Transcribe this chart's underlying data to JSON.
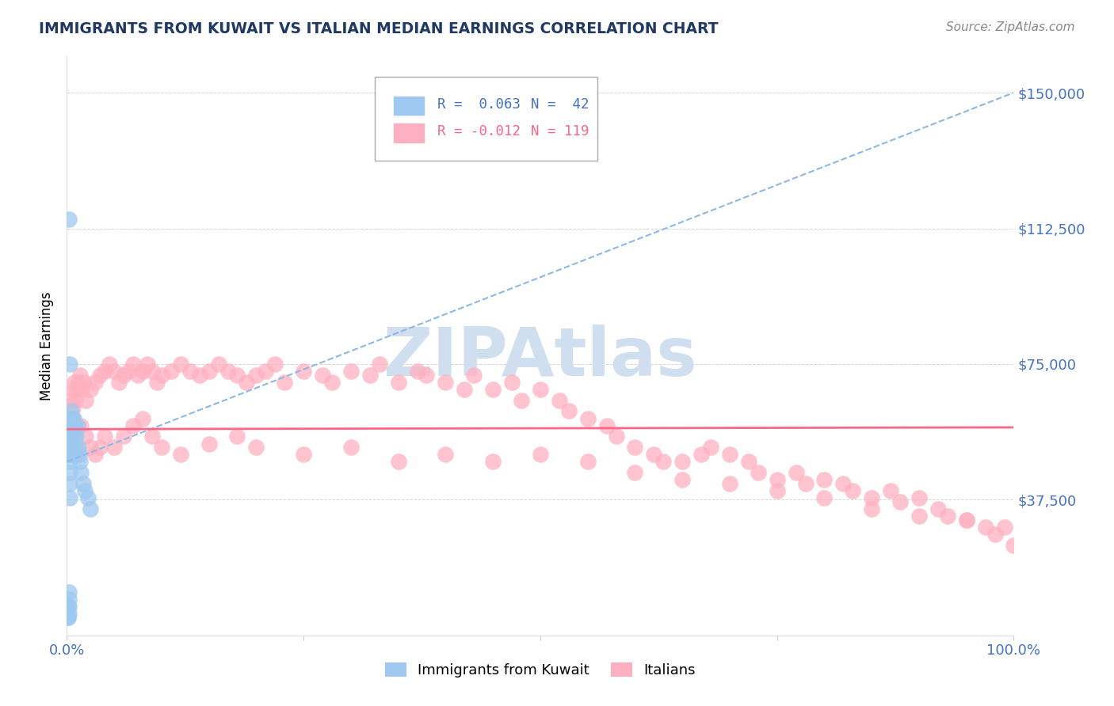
{
  "title": "IMMIGRANTS FROM KUWAIT VS ITALIAN MEDIAN EARNINGS CORRELATION CHART",
  "source": "Source: ZipAtlas.com",
  "ylabel": "Median Earnings",
  "y_ticks": [
    0,
    37500,
    75000,
    112500,
    150000
  ],
  "y_tick_labels": [
    "",
    "$37,500",
    "$75,000",
    "$112,500",
    "$150,000"
  ],
  "y_tick_color": "#4472C4",
  "x_tick_color": "#4472C4",
  "legend_r1": "R =  0.063",
  "legend_n1": "N =  42",
  "legend_r2": "R = -0.012",
  "legend_n2": "N = 119",
  "legend_color1": "#4472C4",
  "legend_color2": "#FF6688",
  "series1_label": "Immigrants from Kuwait",
  "series2_label": "Italians",
  "background_color": "#FFFFFF",
  "grid_color": "#BBBBBB",
  "title_color": "#1F3864",
  "source_color": "#888888",
  "blue_dot_color": "#9EC8F0",
  "pink_dot_color": "#FFB0C0",
  "blue_trend_color": "#8BB8E8",
  "pink_trend_color": "#FF6688",
  "watermark_color": "#D0DFF0",
  "kuwait_x": [
    0.001,
    0.001,
    0.001,
    0.002,
    0.002,
    0.002,
    0.002,
    0.003,
    0.003,
    0.003,
    0.003,
    0.003,
    0.003,
    0.004,
    0.004,
    0.004,
    0.004,
    0.004,
    0.005,
    0.005,
    0.005,
    0.005,
    0.005,
    0.006,
    0.006,
    0.007,
    0.007,
    0.008,
    0.008,
    0.009,
    0.01,
    0.011,
    0.012,
    0.013,
    0.014,
    0.015,
    0.017,
    0.019,
    0.022,
    0.025,
    0.002,
    0.003
  ],
  "kuwait_y": [
    5000,
    8000,
    5000,
    12000,
    10000,
    8000,
    6000,
    55000,
    50000,
    48000,
    45000,
    42000,
    38000,
    60000,
    58000,
    56000,
    54000,
    50000,
    62000,
    60000,
    58000,
    56000,
    52000,
    60000,
    58000,
    60000,
    55000,
    58000,
    52000,
    50000,
    55000,
    58000,
    52000,
    50000,
    48000,
    45000,
    42000,
    40000,
    38000,
    35000,
    115000,
    75000
  ],
  "italian_x": [
    0.005,
    0.006,
    0.007,
    0.008,
    0.009,
    0.01,
    0.012,
    0.014,
    0.016,
    0.018,
    0.02,
    0.025,
    0.03,
    0.035,
    0.04,
    0.045,
    0.05,
    0.055,
    0.06,
    0.065,
    0.07,
    0.075,
    0.08,
    0.085,
    0.09,
    0.095,
    0.1,
    0.11,
    0.12,
    0.13,
    0.14,
    0.15,
    0.16,
    0.17,
    0.18,
    0.19,
    0.2,
    0.21,
    0.22,
    0.23,
    0.25,
    0.27,
    0.28,
    0.3,
    0.32,
    0.33,
    0.35,
    0.37,
    0.38,
    0.4,
    0.42,
    0.43,
    0.45,
    0.47,
    0.48,
    0.5,
    0.52,
    0.53,
    0.55,
    0.57,
    0.58,
    0.6,
    0.62,
    0.63,
    0.65,
    0.67,
    0.68,
    0.7,
    0.72,
    0.73,
    0.75,
    0.77,
    0.78,
    0.8,
    0.82,
    0.83,
    0.85,
    0.87,
    0.88,
    0.9,
    0.92,
    0.93,
    0.95,
    0.97,
    0.98,
    1.0,
    0.008,
    0.01,
    0.015,
    0.02,
    0.025,
    0.03,
    0.035,
    0.04,
    0.05,
    0.06,
    0.07,
    0.08,
    0.09,
    0.1,
    0.12,
    0.15,
    0.18,
    0.2,
    0.25,
    0.3,
    0.35,
    0.4,
    0.45,
    0.5,
    0.55,
    0.6,
    0.65,
    0.7,
    0.75,
    0.8,
    0.85,
    0.9,
    0.95,
    0.99
  ],
  "italian_y": [
    65000,
    63000,
    68000,
    70000,
    65000,
    68000,
    70000,
    72000,
    68000,
    70000,
    65000,
    68000,
    70000,
    72000,
    73000,
    75000,
    73000,
    70000,
    72000,
    73000,
    75000,
    72000,
    73000,
    75000,
    73000,
    70000,
    72000,
    73000,
    75000,
    73000,
    72000,
    73000,
    75000,
    73000,
    72000,
    70000,
    72000,
    73000,
    75000,
    70000,
    73000,
    72000,
    70000,
    73000,
    72000,
    75000,
    70000,
    73000,
    72000,
    70000,
    68000,
    72000,
    68000,
    70000,
    65000,
    68000,
    65000,
    62000,
    60000,
    58000,
    55000,
    52000,
    50000,
    48000,
    48000,
    50000,
    52000,
    50000,
    48000,
    45000,
    43000,
    45000,
    42000,
    43000,
    42000,
    40000,
    38000,
    40000,
    37000,
    38000,
    35000,
    33000,
    32000,
    30000,
    28000,
    25000,
    55000,
    52000,
    58000,
    55000,
    52000,
    50000,
    52000,
    55000,
    52000,
    55000,
    58000,
    60000,
    55000,
    52000,
    50000,
    53000,
    55000,
    52000,
    50000,
    52000,
    48000,
    50000,
    48000,
    50000,
    48000,
    45000,
    43000,
    42000,
    40000,
    38000,
    35000,
    33000,
    32000,
    30000
  ],
  "xlim": [
    0.0,
    1.0
  ],
  "ylim": [
    0,
    160000
  ],
  "blue_trend_line": [
    [
      0.0,
      48000
    ],
    [
      1.0,
      150000
    ]
  ],
  "pink_trend_line": [
    [
      0.0,
      57000
    ],
    [
      1.0,
      57500
    ]
  ]
}
